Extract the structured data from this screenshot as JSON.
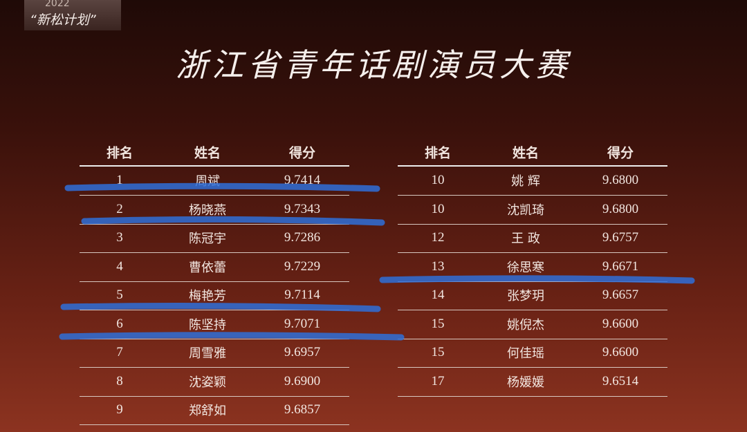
{
  "logo": {
    "year": "2022",
    "name": "“新松计划”"
  },
  "title": "浙江省青年话剧演员大赛",
  "tables": [
    {
      "header": [
        "排名",
        "姓名",
        "得分"
      ],
      "rows": [
        [
          "1",
          "周斌",
          "9.7414"
        ],
        [
          "2",
          "杨晓燕",
          "9.7343"
        ],
        [
          "3",
          "陈冠宇",
          "9.7286"
        ],
        [
          "4",
          "曹依蕾",
          "9.7229"
        ],
        [
          "5",
          "梅艳芳",
          "9.7114"
        ],
        [
          "6",
          "陈坚持",
          "9.7071"
        ],
        [
          "7",
          "周雪雅",
          "9.6957"
        ],
        [
          "8",
          "沈姿颖",
          "9.6900"
        ],
        [
          "9",
          "郑舒如",
          "9.6857"
        ]
      ]
    },
    {
      "header": [
        "排名",
        "姓名",
        "得分"
      ],
      "rows": [
        [
          "10",
          "姚 辉",
          "9.6800"
        ],
        [
          "10",
          "沈凯琦",
          "9.6800"
        ],
        [
          "12",
          "王 政",
          "9.6757"
        ],
        [
          "13",
          "徐思寒",
          "9.6671"
        ],
        [
          "14",
          "张梦玥",
          "9.6657"
        ],
        [
          "15",
          "姚倪杰",
          "9.6600"
        ],
        [
          "15",
          "何佳瑶",
          "9.6600"
        ],
        [
          "17",
          "杨媛媛",
          "9.6514"
        ]
      ]
    }
  ]
}
